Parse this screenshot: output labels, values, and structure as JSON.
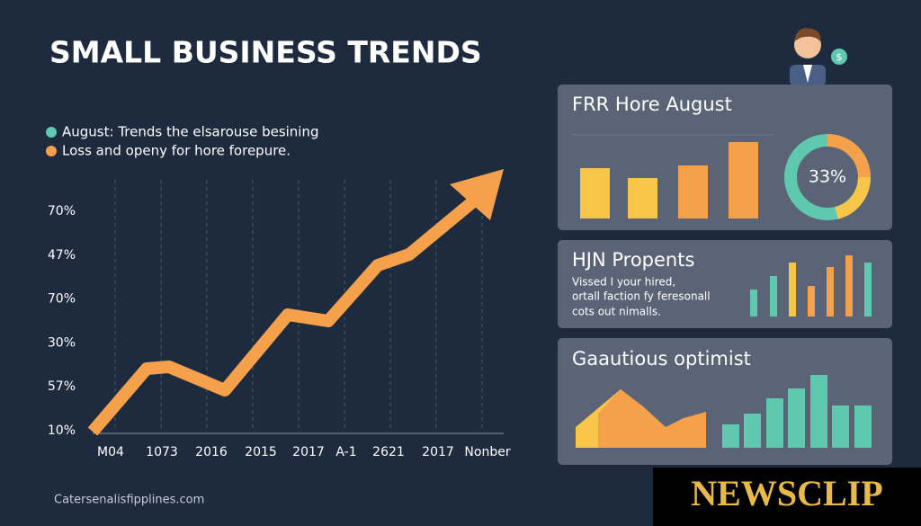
{
  "header": {
    "title": "SMALL BUSINESS TRENDS"
  },
  "legend": [
    {
      "label": "August: Trends the elsarouse besining",
      "color": "#5fc9b0"
    },
    {
      "label": "Loss and openy for hore forepure.",
      "color": "#f5a04a"
    }
  ],
  "main_chart": {
    "y_labels": [
      "70%",
      "47%",
      "70%",
      "30%",
      "57%",
      "10%"
    ],
    "x_labels": [
      "M04",
      "1073",
      "2016",
      "2015",
      "2017",
      "A-1",
      "2621",
      "2017",
      "Nonber"
    ]
  },
  "footer": {
    "source": "Catersenalisfipplines.com"
  },
  "cards": [
    {
      "title": "FRR Hore August",
      "donut_label": "33%"
    },
    {
      "title": "HJN Propents",
      "text": [
        "Vissed I your hired,",
        "ortall faction fy feresonall",
        "cots out nimalls."
      ]
    },
    {
      "title": "Gaautious optimist"
    }
  ],
  "watermark": "NEWSCLIP"
}
